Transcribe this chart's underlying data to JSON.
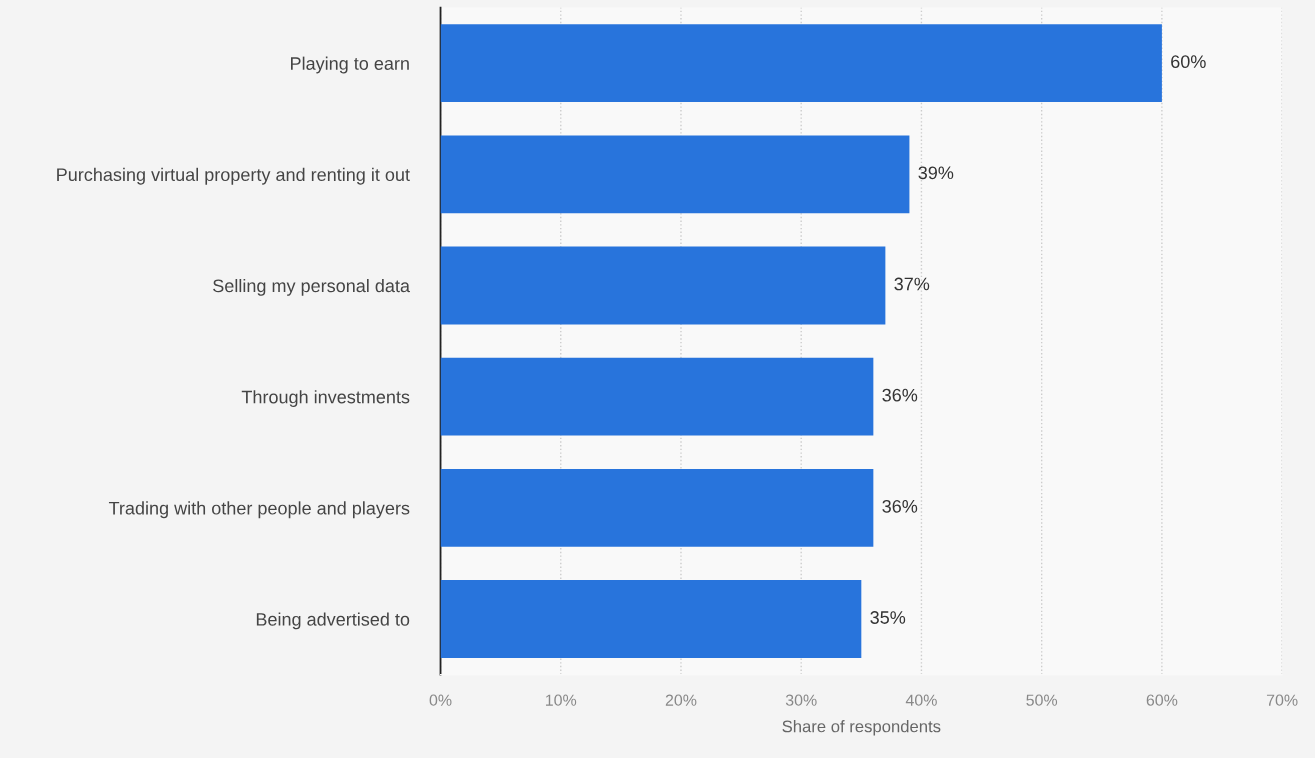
{
  "chart_data": {
    "type": "bar",
    "orientation": "horizontal",
    "xlabel": "Share of respondents",
    "categories": [
      "Playing to earn",
      "Purchasing virtual property and renting it out",
      "Selling my personal data",
      "Through investments",
      "Trading with other people and players",
      "Being advertised to"
    ],
    "values": [
      60,
      39,
      37,
      36,
      36,
      35
    ],
    "value_labels": [
      "60%",
      "39%",
      "37%",
      "36%",
      "36%",
      "35%"
    ],
    "color": "#2874dc",
    "xlim": [
      0,
      70
    ],
    "xticks": [
      {
        "value": 0,
        "label": "0%"
      },
      {
        "value": 10,
        "label": "10%"
      },
      {
        "value": 20,
        "label": "20%"
      },
      {
        "value": 30,
        "label": "30%"
      },
      {
        "value": 40,
        "label": "40%"
      },
      {
        "value": 50,
        "label": "50%"
      },
      {
        "value": 60,
        "label": "60%"
      },
      {
        "value": 70,
        "label": "70%"
      }
    ],
    "grid": "x"
  }
}
